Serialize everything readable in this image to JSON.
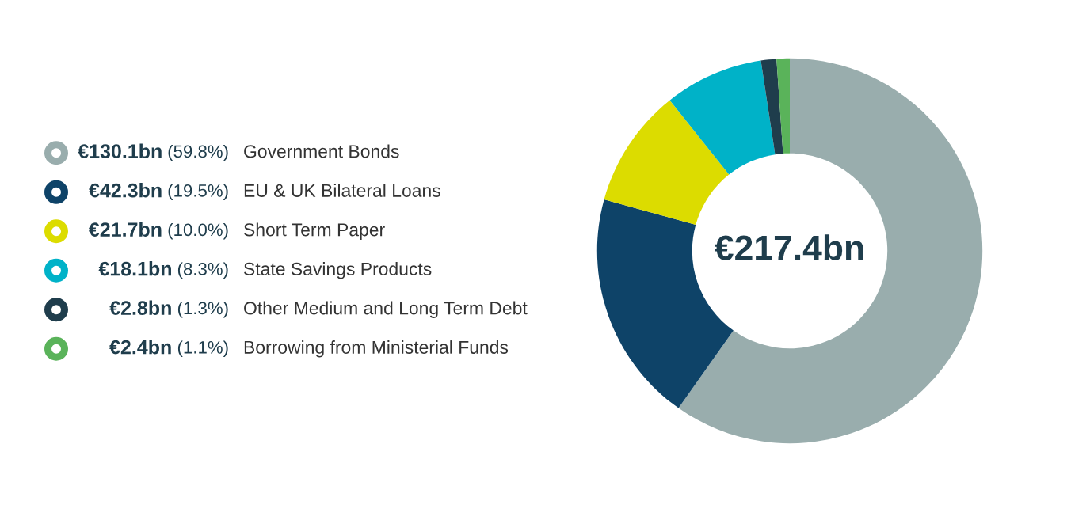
{
  "chart_data": {
    "type": "donut",
    "categories": [
      "€130.1bn (59.8%) Government Bonds",
      "€42.3bn (19.5%) EU & UK Bilateral Loans",
      "€21.7bn (10.0%) Short Term Paper",
      "€18.1bn (8.3%) State Savings Products",
      "€2.8bn (1.3%) Other Medium and Long Term Debt",
      "€2.4bn (1.1%) Borrowing from Ministerial Funds"
    ],
    "values": [
      59.8,
      19.5,
      10.0,
      8.3,
      1.3,
      1.1
    ],
    "colors": [
      "#99adad",
      "#0e4368",
      "#dcdc00",
      "#00b2c8",
      "#1f3d4c",
      "#5ab35a"
    ],
    "annotations": [
      "€217.4bn"
    ],
    "legend": "left"
  }
}
